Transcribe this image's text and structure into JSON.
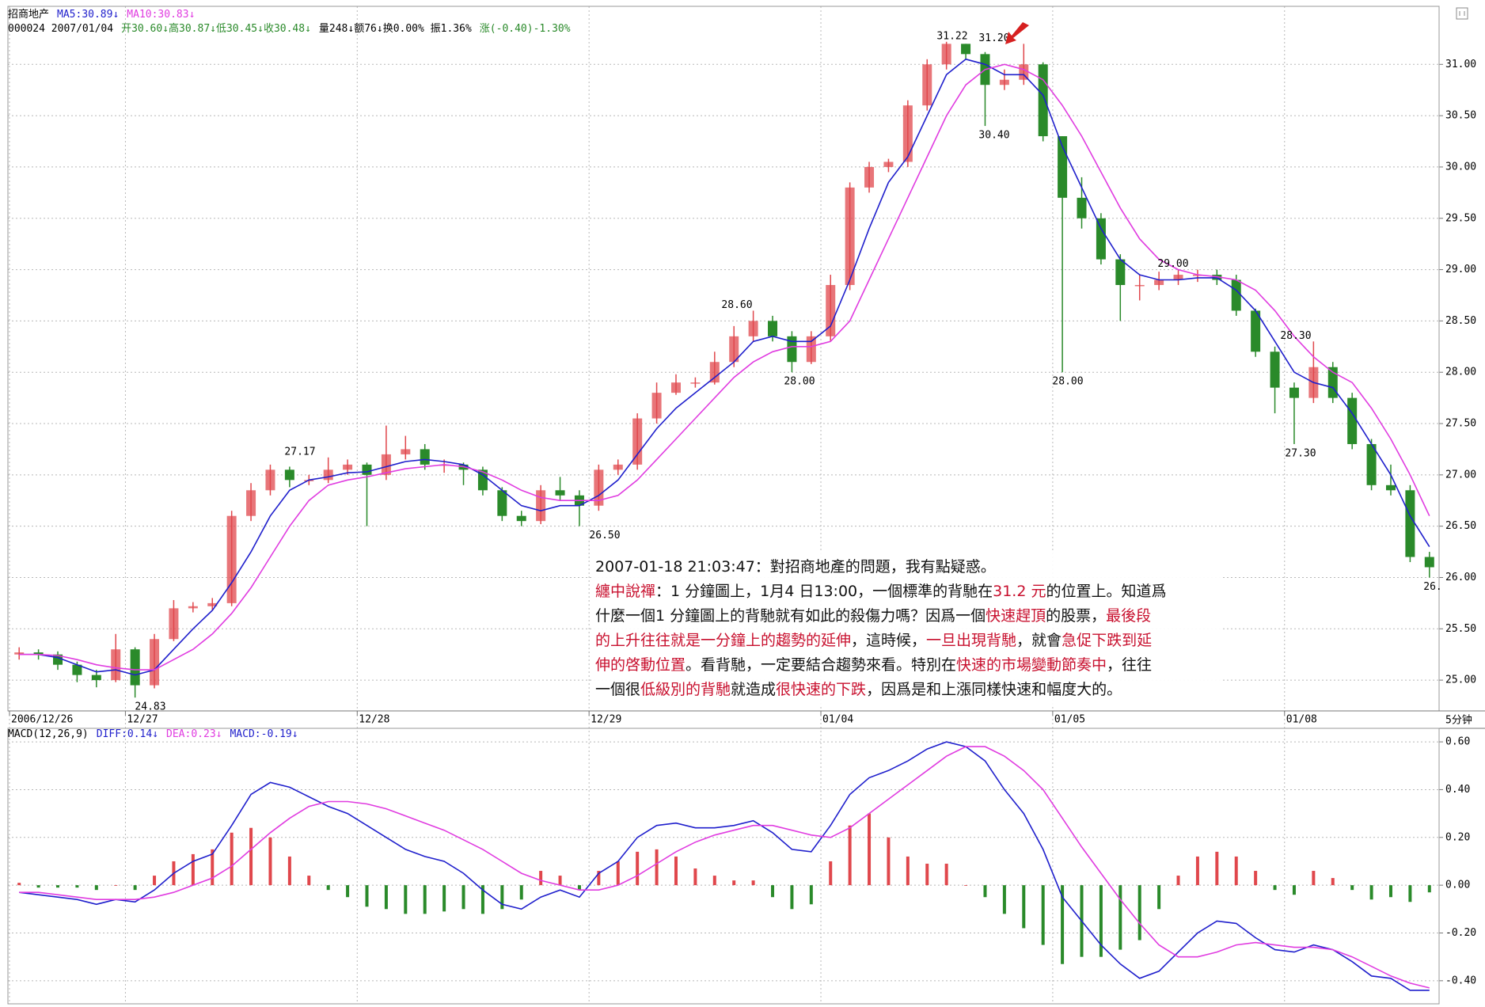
{
  "chart_data": [
    {
      "type": "candlestick",
      "header": [
        [
          {
            "text": "招商地产",
            "color": "#000000"
          },
          {
            "text": "MA5:30.89↓",
            "color": "#1f1fcc"
          },
          {
            "text": "MA10:30.83↓",
            "color": "#e03ce0"
          }
        ],
        [
          {
            "text": "000024 2007/01/04",
            "color": "#000000"
          },
          {
            "text": "开30.60↓高30.87↓低30.45↓收30.48↓",
            "color": "#2a8a2a"
          },
          {
            "text": "量248↓额76↓换0.00% 振1.36%",
            "color": "#000000"
          },
          {
            "text": "涨(-0.40)-1.30%",
            "color": "#2a8a2a"
          }
        ]
      ],
      "categories": [
        "2006/12/26",
        null,
        null,
        null,
        null,
        null,
        "12/27",
        null,
        null,
        null,
        null,
        null,
        null,
        null,
        null,
        null,
        null,
        null,
        "12/28",
        null,
        null,
        null,
        null,
        null,
        null,
        null,
        null,
        null,
        null,
        null,
        "12/29",
        null,
        null,
        null,
        null,
        null,
        null,
        null,
        null,
        null,
        null,
        null,
        "01/04",
        null,
        null,
        null,
        null,
        null,
        null,
        null,
        null,
        null,
        null,
        null,
        "01/05",
        null,
        null,
        null,
        null,
        null,
        null,
        null,
        null,
        null,
        null,
        null,
        "01/08",
        null,
        null,
        null,
        null,
        null,
        null,
        null
      ],
      "open": [
        25.25,
        25.27,
        25.25,
        25.15,
        25.05,
        25.0,
        25.3,
        24.95,
        25.4,
        25.7,
        25.72,
        25.75,
        26.6,
        26.85,
        27.05,
        26.95,
        26.95,
        27.05,
        27.1,
        27.0,
        27.2,
        27.25,
        27.1,
        27.1,
        27.05,
        26.85,
        26.6,
        26.55,
        26.85,
        26.8,
        26.7,
        27.05,
        27.1,
        27.55,
        27.8,
        27.9,
        27.9,
        28.1,
        28.35,
        28.5,
        28.35,
        28.1,
        28.35,
        28.85,
        29.8,
        30.0,
        30.05,
        30.6,
        31.0,
        31.2,
        31.1,
        30.8,
        30.85,
        31.0,
        30.3,
        29.7,
        29.5,
        29.1,
        28.85,
        28.85,
        28.9,
        28.95,
        28.95,
        28.9,
        28.6,
        28.2,
        27.85,
        27.75,
        28.05,
        27.75,
        27.3,
        26.9,
        26.85,
        26.2
      ],
      "high": [
        25.32,
        25.3,
        25.28,
        25.18,
        25.1,
        25.45,
        25.32,
        25.45,
        25.78,
        25.76,
        25.8,
        26.65,
        26.92,
        27.1,
        27.08,
        27.0,
        27.17,
        27.15,
        27.12,
        27.48,
        27.38,
        27.3,
        27.15,
        27.12,
        27.08,
        26.88,
        26.65,
        26.9,
        26.98,
        26.85,
        27.1,
        27.15,
        27.6,
        27.9,
        27.98,
        27.95,
        28.2,
        28.45,
        28.6,
        28.55,
        28.4,
        28.4,
        28.95,
        29.85,
        30.05,
        30.08,
        30.65,
        31.05,
        31.22,
        31.2,
        31.12,
        30.95,
        31.2,
        31.02,
        30.3,
        29.9,
        29.55,
        29.15,
        28.95,
        28.98,
        29.0,
        29.0,
        29.0,
        28.95,
        28.62,
        28.25,
        27.9,
        28.3,
        28.1,
        27.8,
        27.35,
        27.1,
        26.9,
        26.25
      ],
      "low": [
        25.2,
        25.2,
        25.1,
        24.98,
        24.93,
        24.98,
        24.83,
        24.92,
        25.38,
        25.66,
        25.68,
        25.72,
        26.55,
        26.8,
        26.88,
        26.9,
        26.92,
        27.0,
        26.5,
        26.95,
        27.15,
        27.05,
        27.02,
        26.9,
        26.8,
        26.55,
        26.5,
        26.52,
        26.75,
        26.5,
        26.65,
        27.0,
        27.05,
        27.5,
        27.78,
        27.85,
        27.88,
        28.05,
        28.3,
        28.3,
        28.0,
        28.08,
        28.3,
        28.8,
        29.75,
        29.95,
        30.0,
        30.55,
        30.95,
        31.05,
        30.4,
        30.75,
        30.8,
        30.25,
        28.0,
        29.4,
        29.05,
        28.5,
        28.7,
        28.8,
        28.85,
        28.88,
        28.85,
        28.55,
        28.15,
        27.6,
        27.3,
        27.7,
        27.7,
        27.25,
        26.85,
        26.8,
        26.15,
        26.0
      ],
      "close": [
        25.27,
        25.25,
        25.15,
        25.05,
        25.0,
        25.3,
        24.95,
        25.4,
        25.7,
        25.72,
        25.75,
        26.6,
        26.85,
        27.05,
        26.95,
        26.95,
        27.05,
        27.1,
        27.0,
        27.2,
        27.25,
        27.1,
        27.1,
        27.05,
        26.85,
        26.6,
        26.55,
        26.85,
        26.8,
        26.7,
        27.05,
        27.1,
        27.55,
        27.8,
        27.9,
        27.9,
        28.1,
        28.35,
        28.5,
        28.35,
        28.1,
        28.35,
        28.85,
        29.8,
        30.0,
        30.05,
        30.6,
        31.0,
        31.2,
        31.1,
        30.8,
        30.85,
        31.0,
        30.3,
        29.7,
        29.5,
        29.1,
        28.85,
        28.85,
        28.9,
        28.95,
        28.95,
        28.9,
        28.6,
        28.2,
        27.85,
        27.75,
        28.05,
        27.75,
        27.3,
        26.9,
        26.85,
        26.2,
        26.1
      ],
      "up_color": "#e0474c",
      "down_color": "#2a8a2a",
      "series": [
        {
          "name": "MA5",
          "color": "#1f1fcc",
          "values": [
            25.25,
            25.25,
            25.22,
            25.15,
            25.08,
            25.1,
            25.05,
            25.1,
            25.3,
            25.5,
            25.68,
            25.95,
            26.25,
            26.6,
            26.85,
            26.95,
            26.98,
            27.02,
            27.03,
            27.08,
            27.13,
            27.15,
            27.13,
            27.1,
            27.0,
            26.85,
            26.7,
            26.65,
            26.7,
            26.7,
            26.8,
            26.95,
            27.2,
            27.45,
            27.65,
            27.8,
            27.95,
            28.1,
            28.3,
            28.35,
            28.3,
            28.3,
            28.45,
            28.9,
            29.4,
            29.85,
            30.1,
            30.5,
            30.9,
            31.05,
            31.0,
            30.9,
            30.9,
            30.7,
            30.2,
            29.8,
            29.4,
            29.1,
            28.95,
            28.9,
            28.9,
            28.92,
            28.92,
            28.8,
            28.6,
            28.3,
            28.0,
            27.9,
            27.85,
            27.6,
            27.3,
            27.0,
            26.6,
            26.3
          ]
        },
        {
          "name": "MA10",
          "color": "#e03ce0",
          "values": [
            25.25,
            25.25,
            25.24,
            25.2,
            25.15,
            25.12,
            25.1,
            25.1,
            25.2,
            25.3,
            25.45,
            25.65,
            25.9,
            26.2,
            26.5,
            26.75,
            26.9,
            26.95,
            26.98,
            27.02,
            27.06,
            27.08,
            27.1,
            27.08,
            27.03,
            26.95,
            26.85,
            26.78,
            26.75,
            26.75,
            26.75,
            26.8,
            26.95,
            27.15,
            27.35,
            27.55,
            27.75,
            27.95,
            28.1,
            28.2,
            28.25,
            28.25,
            28.3,
            28.5,
            28.9,
            29.3,
            29.7,
            30.1,
            30.5,
            30.8,
            30.95,
            31.0,
            30.95,
            30.85,
            30.6,
            30.3,
            29.95,
            29.6,
            29.3,
            29.1,
            29.0,
            28.95,
            28.93,
            28.9,
            28.8,
            28.6,
            28.35,
            28.15,
            28.0,
            27.9,
            27.65,
            27.35,
            27.0,
            26.6
          ]
        }
      ],
      "price_labels": [
        {
          "value": 31.22,
          "label": "31.22",
          "position": "above"
        },
        {
          "value": 31.2,
          "label": "31.20",
          "position": "above"
        },
        {
          "value": 30.4,
          "label": "30.40",
          "position": "below"
        },
        {
          "value": 28.6,
          "label": "28.60",
          "position": "above"
        },
        {
          "value": 28.0,
          "label": "28.00",
          "position": "below"
        },
        {
          "value": 28.0,
          "label": "28.00",
          "position": "below"
        },
        {
          "value": 29.0,
          "label": "29.00",
          "position": "above"
        },
        {
          "value": 28.3,
          "label": "28.30",
          "position": "above"
        },
        {
          "value": 27.3,
          "label": "27.30",
          "position": "below"
        },
        {
          "value": 27.17,
          "label": "27.17",
          "position": "above"
        },
        {
          "value": 26.5,
          "label": "26.50",
          "position": "below"
        },
        {
          "value": 24.83,
          "label": "24.83",
          "position": "below"
        },
        {
          "value": 26.0,
          "label": "26.",
          "position": "below"
        }
      ],
      "ylim": [
        24.7,
        31.55
      ],
      "yticks": [
        {
          "value": 25,
          "label": "25.00"
        },
        {
          "value": 25.5,
          "label": "25.50"
        },
        {
          "value": 26,
          "label": "26.00"
        },
        {
          "value": 26.5,
          "label": "26.50"
        },
        {
          "value": 27,
          "label": "27.00"
        },
        {
          "value": 27.5,
          "label": "27.50"
        },
        {
          "value": 28,
          "label": "28.00"
        },
        {
          "value": 28.5,
          "label": "28.50"
        },
        {
          "value": 29,
          "label": "29.00"
        },
        {
          "value": 29.5,
          "label": "29.50"
        },
        {
          "value": 30,
          "label": "30.00"
        },
        {
          "value": 30.5,
          "label": "30.50"
        },
        {
          "value": 31,
          "label": "31.00"
        }
      ],
      "grid": true,
      "interval_label": "5分钟",
      "annotation": {
        "lines": [
          [
            {
              "text": "2007-01-18 21:03:47：對招商地產的問題，我有點疑惑。",
              "color": "#111111"
            }
          ],
          [
            {
              "text": "纏中說禪",
              "color": "#c8102e"
            },
            {
              "text": "：1 分鐘圖上，1月4 日13:00，一個標準的背馳在",
              "color": "#111111"
            },
            {
              "text": "31.2 元",
              "color": "#c8102e"
            },
            {
              "text": "的位置上。知道爲",
              "color": "#111111"
            }
          ],
          [
            {
              "text": "什麼一個1 分鐘圖上的背馳就有如此的殺傷力嗎？因爲一個",
              "color": "#111111"
            },
            {
              "text": "快速趕頂",
              "color": "#c8102e"
            },
            {
              "text": "的股票，",
              "color": "#111111"
            },
            {
              "text": "最後段",
              "color": "#c8102e"
            }
          ],
          [
            {
              "text": "的上升往往就是一分鐘上的趨勢的延伸",
              "color": "#c8102e"
            },
            {
              "text": "，這時候，",
              "color": "#111111"
            },
            {
              "text": "一旦出現背馳",
              "color": "#c8102e"
            },
            {
              "text": "，就會",
              "color": "#111111"
            },
            {
              "text": "急促下跌到延",
              "color": "#c8102e"
            }
          ],
          [
            {
              "text": "伸的啓動位置",
              "color": "#c8102e"
            },
            {
              "text": "。看背馳，一定要結合趨勢來看。特別在",
              "color": "#111111"
            },
            {
              "text": "快速的市場變動節奏中",
              "color": "#c8102e"
            },
            {
              "text": "，往往",
              "color": "#111111"
            }
          ],
          [
            {
              "text": "一個很",
              "color": "#111111"
            },
            {
              "text": "低級別的背馳",
              "color": "#c8102e"
            },
            {
              "text": "就造成",
              "color": "#111111"
            },
            {
              "text": "很快速的下跌",
              "color": "#c8102e"
            },
            {
              "text": "，因爲是和上漲同樣快速和幅度大的。",
              "color": "#111111"
            }
          ]
        ]
      }
    },
    {
      "type": "macd",
      "header": [
        {
          "text": "MACD(12,26,9)",
          "color": "#000000"
        },
        {
          "text": "DIFF:0.14↓",
          "color": "#1f1fcc"
        },
        {
          "text": "DEA:0.23↓",
          "color": "#e03ce0"
        },
        {
          "text": "MACD:-0.19↓",
          "color": "#1f1fcc"
        }
      ],
      "pos_color": "#e0474c",
      "neg_color": "#2a8a2a",
      "values": [
        0.01,
        -0.01,
        -0.01,
        -0.01,
        -0.02,
        0.0,
        -0.02,
        0.04,
        0.1,
        0.13,
        0.15,
        0.22,
        0.24,
        0.2,
        0.12,
        0.04,
        -0.02,
        -0.05,
        -0.09,
        -0.1,
        -0.12,
        -0.12,
        -0.11,
        -0.1,
        -0.12,
        -0.1,
        -0.06,
        0.06,
        0.04,
        -0.02,
        0.06,
        0.1,
        0.14,
        0.15,
        0.12,
        0.07,
        0.04,
        0.02,
        0.02,
        -0.05,
        -0.1,
        -0.08,
        0.1,
        0.25,
        0.3,
        0.2,
        0.12,
        0.09,
        0.09,
        0.0,
        -0.05,
        -0.12,
        -0.18,
        -0.25,
        -0.33,
        -0.3,
        -0.3,
        -0.27,
        -0.23,
        -0.1,
        0.04,
        0.12,
        0.14,
        0.12,
        0.06,
        -0.02,
        -0.04,
        0.06,
        0.03,
        -0.02,
        -0.06,
        -0.05,
        -0.07,
        -0.03
      ],
      "series": [
        {
          "name": "DIFF",
          "color": "#1f1fcc",
          "values": [
            -0.03,
            -0.04,
            -0.05,
            -0.06,
            -0.08,
            -0.06,
            -0.07,
            -0.02,
            0.05,
            0.1,
            0.13,
            0.25,
            0.38,
            0.43,
            0.41,
            0.37,
            0.33,
            0.3,
            0.25,
            0.2,
            0.15,
            0.12,
            0.1,
            0.05,
            -0.02,
            -0.08,
            -0.1,
            -0.05,
            -0.02,
            -0.05,
            0.05,
            0.1,
            0.2,
            0.25,
            0.26,
            0.24,
            0.24,
            0.25,
            0.27,
            0.22,
            0.15,
            0.14,
            0.25,
            0.38,
            0.45,
            0.48,
            0.52,
            0.57,
            0.6,
            0.58,
            0.52,
            0.4,
            0.3,
            0.15,
            -0.05,
            -0.15,
            -0.25,
            -0.33,
            -0.39,
            -0.36,
            -0.28,
            -0.2,
            -0.15,
            -0.16,
            -0.22,
            -0.27,
            -0.28,
            -0.25,
            -0.27,
            -0.32,
            -0.38,
            -0.39,
            -0.44,
            -0.44
          ]
        },
        {
          "name": "DEA",
          "color": "#e03ce0",
          "values": [
            -0.03,
            -0.03,
            -0.04,
            -0.05,
            -0.06,
            -0.06,
            -0.06,
            -0.05,
            -0.03,
            0.0,
            0.03,
            0.08,
            0.15,
            0.22,
            0.28,
            0.33,
            0.35,
            0.35,
            0.34,
            0.32,
            0.29,
            0.26,
            0.23,
            0.19,
            0.15,
            0.1,
            0.05,
            0.02,
            0.0,
            -0.02,
            -0.02,
            0.0,
            0.04,
            0.09,
            0.14,
            0.18,
            0.21,
            0.23,
            0.25,
            0.25,
            0.23,
            0.21,
            0.2,
            0.24,
            0.3,
            0.36,
            0.42,
            0.48,
            0.54,
            0.58,
            0.58,
            0.54,
            0.48,
            0.4,
            0.28,
            0.16,
            0.05,
            -0.06,
            -0.16,
            -0.25,
            -0.3,
            -0.3,
            -0.28,
            -0.25,
            -0.24,
            -0.25,
            -0.26,
            -0.26,
            -0.27,
            -0.3,
            -0.34,
            -0.38,
            -0.41,
            -0.43
          ]
        }
      ],
      "ylim": [
        -0.49,
        0.65
      ],
      "yticks": [
        {
          "value": 0.6,
          "label": "0.60"
        },
        {
          "value": 0.4,
          "label": "0.40"
        },
        {
          "value": 0.2,
          "label": "0.20"
        },
        {
          "value": 0,
          "label": "0.00"
        },
        {
          "value": -0.2,
          "label": "-0.20"
        },
        {
          "value": -0.4,
          "label": "-0.40"
        }
      ],
      "grid": true
    }
  ]
}
